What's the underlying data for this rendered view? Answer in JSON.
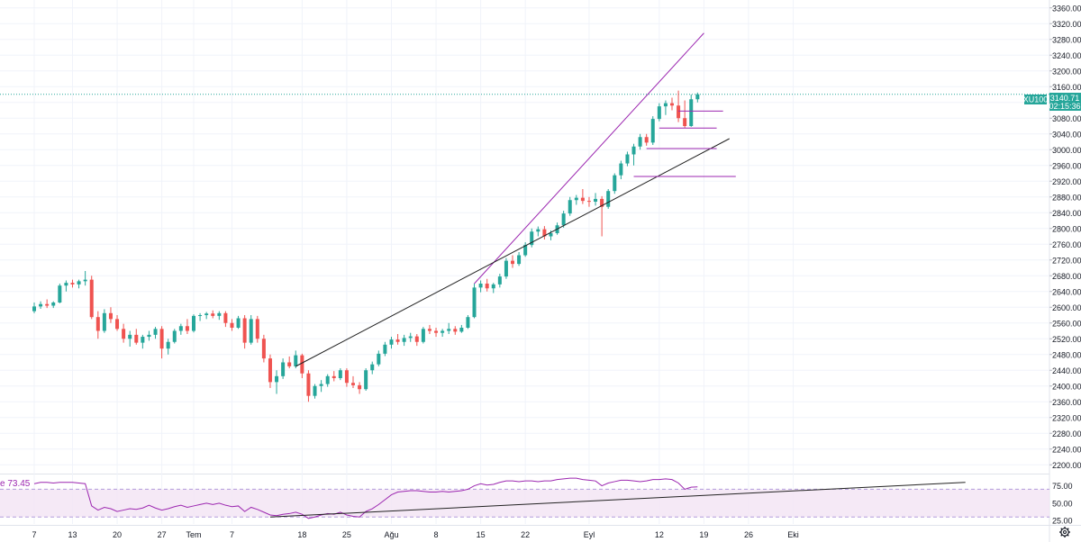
{
  "colors": {
    "up": "#26a69a",
    "down": "#ef5350",
    "trend_channel": "#9c27b0",
    "trend_support": "#222222",
    "level_line": "#9c27b0",
    "rsi_line": "#9c27b0",
    "rsi_band_fill": "#f3e5f5",
    "price_line": "#26a69a",
    "grid": "#f0f3fa",
    "axis_border": "#e0e3eb"
  },
  "icons": {
    "settings": "gear-icon"
  },
  "chart_data": {
    "type": "candlestick",
    "symbol": "XU100",
    "last_price": "3140.71",
    "countdown": "02:15:36",
    "y_ticks": [
      "3360.00",
      "3320.00",
      "3280.00",
      "3240.00",
      "3200.00",
      "3160.00",
      "3120.00",
      "3080.00",
      "3040.00",
      "3000.00",
      "2960.00",
      "2920.00",
      "2880.00",
      "2840.00",
      "2800.00",
      "2760.00",
      "2720.00",
      "2680.00",
      "2640.00",
      "2600.00",
      "2560.00",
      "2520.00",
      "2480.00",
      "2440.00",
      "2400.00",
      "2360.00",
      "2320.00",
      "2280.00",
      "2240.00",
      "2200.00"
    ],
    "y_range": [
      2180,
      3380
    ],
    "x_ticks": [
      {
        "label": "7",
        "day": 0
      },
      {
        "label": "13",
        "day": 6
      },
      {
        "label": "20",
        "day": 13
      },
      {
        "label": "27",
        "day": 20
      },
      {
        "label": "Tem",
        "day": 25
      },
      {
        "label": "7",
        "day": 31
      },
      {
        "label": "18",
        "day": 42
      },
      {
        "label": "25",
        "day": 49
      },
      {
        "label": "Ağu",
        "day": 56
      },
      {
        "label": "8",
        "day": 63
      },
      {
        "label": "15",
        "day": 70
      },
      {
        "label": "22",
        "day": 77
      },
      {
        "label": "Eyl",
        "day": 87
      },
      {
        "label": "12",
        "day": 98
      },
      {
        "label": "19",
        "day": 105
      },
      {
        "label": "26",
        "day": 112
      },
      {
        "label": "Eki",
        "day": 119
      }
    ],
    "candles": [
      {
        "o": 2590,
        "h": 2612,
        "l": 2585,
        "c": 2602
      },
      {
        "o": 2602,
        "h": 2615,
        "l": 2596,
        "c": 2608
      },
      {
        "o": 2608,
        "h": 2620,
        "l": 2598,
        "c": 2604
      },
      {
        "o": 2604,
        "h": 2615,
        "l": 2598,
        "c": 2612
      },
      {
        "o": 2612,
        "h": 2660,
        "l": 2610,
        "c": 2655
      },
      {
        "o": 2655,
        "h": 2668,
        "l": 2640,
        "c": 2662
      },
      {
        "o": 2662,
        "h": 2670,
        "l": 2650,
        "c": 2658
      },
      {
        "o": 2658,
        "h": 2670,
        "l": 2648,
        "c": 2666
      },
      {
        "o": 2666,
        "h": 2692,
        "l": 2655,
        "c": 2670
      },
      {
        "o": 2670,
        "h": 2680,
        "l": 2570,
        "c": 2575
      },
      {
        "o": 2575,
        "h": 2590,
        "l": 2520,
        "c": 2540
      },
      {
        "o": 2540,
        "h": 2595,
        "l": 2535,
        "c": 2585
      },
      {
        "o": 2585,
        "h": 2600,
        "l": 2560,
        "c": 2570
      },
      {
        "o": 2570,
        "h": 2580,
        "l": 2540,
        "c": 2545
      },
      {
        "o": 2545,
        "h": 2558,
        "l": 2510,
        "c": 2520
      },
      {
        "o": 2520,
        "h": 2540,
        "l": 2500,
        "c": 2530
      },
      {
        "o": 2530,
        "h": 2545,
        "l": 2505,
        "c": 2510
      },
      {
        "o": 2510,
        "h": 2530,
        "l": 2495,
        "c": 2525
      },
      {
        "o": 2525,
        "h": 2540,
        "l": 2515,
        "c": 2530
      },
      {
        "o": 2530,
        "h": 2550,
        "l": 2520,
        "c": 2545
      },
      {
        "o": 2545,
        "h": 2552,
        "l": 2470,
        "c": 2495
      },
      {
        "o": 2495,
        "h": 2520,
        "l": 2480,
        "c": 2512
      },
      {
        "o": 2512,
        "h": 2545,
        "l": 2508,
        "c": 2540
      },
      {
        "o": 2540,
        "h": 2558,
        "l": 2530,
        "c": 2552
      },
      {
        "o": 2552,
        "h": 2570,
        "l": 2532,
        "c": 2540
      },
      {
        "o": 2540,
        "h": 2582,
        "l": 2536,
        "c": 2578
      },
      {
        "o": 2578,
        "h": 2585,
        "l": 2565,
        "c": 2580
      },
      {
        "o": 2580,
        "h": 2588,
        "l": 2570,
        "c": 2584
      },
      {
        "o": 2584,
        "h": 2592,
        "l": 2572,
        "c": 2578
      },
      {
        "o": 2578,
        "h": 2590,
        "l": 2568,
        "c": 2585
      },
      {
        "o": 2585,
        "h": 2590,
        "l": 2550,
        "c": 2560
      },
      {
        "o": 2560,
        "h": 2570,
        "l": 2540,
        "c": 2548
      },
      {
        "o": 2548,
        "h": 2578,
        "l": 2545,
        "c": 2572
      },
      {
        "o": 2572,
        "h": 2580,
        "l": 2495,
        "c": 2510
      },
      {
        "o": 2510,
        "h": 2580,
        "l": 2505,
        "c": 2570
      },
      {
        "o": 2570,
        "h": 2578,
        "l": 2510,
        "c": 2520
      },
      {
        "o": 2520,
        "h": 2530,
        "l": 2460,
        "c": 2470
      },
      {
        "o": 2470,
        "h": 2480,
        "l": 2395,
        "c": 2410
      },
      {
        "o": 2410,
        "h": 2440,
        "l": 2380,
        "c": 2425
      },
      {
        "o": 2425,
        "h": 2470,
        "l": 2418,
        "c": 2460
      },
      {
        "o": 2460,
        "h": 2475,
        "l": 2445,
        "c": 2450
      },
      {
        "o": 2450,
        "h": 2490,
        "l": 2445,
        "c": 2478
      },
      {
        "o": 2478,
        "h": 2482,
        "l": 2420,
        "c": 2432
      },
      {
        "o": 2432,
        "h": 2440,
        "l": 2360,
        "c": 2375
      },
      {
        "o": 2375,
        "h": 2405,
        "l": 2368,
        "c": 2400
      },
      {
        "o": 2400,
        "h": 2415,
        "l": 2385,
        "c": 2405
      },
      {
        "o": 2405,
        "h": 2430,
        "l": 2398,
        "c": 2425
      },
      {
        "o": 2425,
        "h": 2438,
        "l": 2412,
        "c": 2420
      },
      {
        "o": 2420,
        "h": 2445,
        "l": 2415,
        "c": 2440
      },
      {
        "o": 2440,
        "h": 2445,
        "l": 2398,
        "c": 2408
      },
      {
        "o": 2408,
        "h": 2425,
        "l": 2395,
        "c": 2402
      },
      {
        "o": 2402,
        "h": 2410,
        "l": 2380,
        "c": 2392
      },
      {
        "o": 2392,
        "h": 2445,
        "l": 2388,
        "c": 2440
      },
      {
        "o": 2440,
        "h": 2462,
        "l": 2430,
        "c": 2455
      },
      {
        "o": 2455,
        "h": 2490,
        "l": 2450,
        "c": 2482
      },
      {
        "o": 2482,
        "h": 2512,
        "l": 2476,
        "c": 2505
      },
      {
        "o": 2505,
        "h": 2525,
        "l": 2495,
        "c": 2518
      },
      {
        "o": 2518,
        "h": 2532,
        "l": 2505,
        "c": 2512
      },
      {
        "o": 2512,
        "h": 2530,
        "l": 2502,
        "c": 2522
      },
      {
        "o": 2522,
        "h": 2535,
        "l": 2512,
        "c": 2526
      },
      {
        "o": 2526,
        "h": 2532,
        "l": 2502,
        "c": 2512
      },
      {
        "o": 2512,
        "h": 2550,
        "l": 2508,
        "c": 2545
      },
      {
        "o": 2545,
        "h": 2555,
        "l": 2532,
        "c": 2540
      },
      {
        "o": 2540,
        "h": 2548,
        "l": 2525,
        "c": 2535
      },
      {
        "o": 2535,
        "h": 2545,
        "l": 2525,
        "c": 2540
      },
      {
        "o": 2540,
        "h": 2560,
        "l": 2532,
        "c": 2545
      },
      {
        "o": 2545,
        "h": 2552,
        "l": 2530,
        "c": 2538
      },
      {
        "o": 2538,
        "h": 2555,
        "l": 2535,
        "c": 2548
      },
      {
        "o": 2548,
        "h": 2580,
        "l": 2545,
        "c": 2575
      },
      {
        "o": 2575,
        "h": 2660,
        "l": 2572,
        "c": 2650
      },
      {
        "o": 2650,
        "h": 2668,
        "l": 2638,
        "c": 2660
      },
      {
        "o": 2660,
        "h": 2672,
        "l": 2640,
        "c": 2648
      },
      {
        "o": 2648,
        "h": 2662,
        "l": 2636,
        "c": 2658
      },
      {
        "o": 2658,
        "h": 2685,
        "l": 2650,
        "c": 2678
      },
      {
        "o": 2678,
        "h": 2725,
        "l": 2672,
        "c": 2718
      },
      {
        "o": 2718,
        "h": 2732,
        "l": 2700,
        "c": 2710
      },
      {
        "o": 2710,
        "h": 2740,
        "l": 2705,
        "c": 2732
      },
      {
        "o": 2732,
        "h": 2765,
        "l": 2728,
        "c": 2758
      },
      {
        "o": 2758,
        "h": 2800,
        "l": 2752,
        "c": 2792
      },
      {
        "o": 2792,
        "h": 2805,
        "l": 2780,
        "c": 2798
      },
      {
        "o": 2798,
        "h": 2806,
        "l": 2772,
        "c": 2780
      },
      {
        "o": 2780,
        "h": 2795,
        "l": 2770,
        "c": 2788
      },
      {
        "o": 2788,
        "h": 2815,
        "l": 2784,
        "c": 2808
      },
      {
        "o": 2808,
        "h": 2845,
        "l": 2802,
        "c": 2838
      },
      {
        "o": 2838,
        "h": 2880,
        "l": 2832,
        "c": 2872
      },
      {
        "o": 2872,
        "h": 2885,
        "l": 2860,
        "c": 2878
      },
      {
        "o": 2878,
        "h": 2900,
        "l": 2862,
        "c": 2870
      },
      {
        "o": 2870,
        "h": 2880,
        "l": 2855,
        "c": 2868
      },
      {
        "o": 2868,
        "h": 2890,
        "l": 2858,
        "c": 2875
      },
      {
        "o": 2875,
        "h": 2882,
        "l": 2780,
        "c": 2855
      },
      {
        "o": 2855,
        "h": 2900,
        "l": 2850,
        "c": 2895
      },
      {
        "o": 2895,
        "h": 2940,
        "l": 2888,
        "c": 2935
      },
      {
        "o": 2935,
        "h": 2972,
        "l": 2925,
        "c": 2965
      },
      {
        "o": 2965,
        "h": 2995,
        "l": 2958,
        "c": 2988
      },
      {
        "o": 2988,
        "h": 3015,
        "l": 2960,
        "c": 3008
      },
      {
        "o": 3008,
        "h": 3040,
        "l": 3000,
        "c": 3032
      },
      {
        "o": 3032,
        "h": 3040,
        "l": 3010,
        "c": 3018
      },
      {
        "o": 3018,
        "h": 3085,
        "l": 3012,
        "c": 3078
      },
      {
        "o": 3078,
        "h": 3118,
        "l": 3072,
        "c": 3110
      },
      {
        "o": 3110,
        "h": 3125,
        "l": 3088,
        "c": 3118
      },
      {
        "o": 3118,
        "h": 3132,
        "l": 3100,
        "c": 3112
      },
      {
        "o": 3112,
        "h": 3150,
        "l": 3070,
        "c": 3080
      },
      {
        "o": 3080,
        "h": 3125,
        "l": 3055,
        "c": 3060
      },
      {
        "o": 3060,
        "h": 3140,
        "l": 3058,
        "c": 3128
      },
      {
        "o": 3128,
        "h": 3145,
        "l": 3120,
        "c": 3140.71
      }
    ],
    "trend_lines": [
      {
        "name": "upper-channel",
        "from": {
          "day": 69,
          "price": 2660
        },
        "to": {
          "day": 105,
          "price": 3296
        }
      },
      {
        "name": "lower-support",
        "from": {
          "day": 41,
          "price": 2450
        },
        "to": {
          "day": 109,
          "price": 3028
        }
      }
    ],
    "horizontal_levels": [
      {
        "price": 3098,
        "from_day": 101,
        "to_day": 108
      },
      {
        "price": 3055,
        "from_day": 98,
        "to_day": 107
      },
      {
        "price": 3003,
        "from_day": 96,
        "to_day": 107
      },
      {
        "price": 2932,
        "from_day": 94,
        "to_day": 110
      }
    ],
    "rsi": {
      "label": "e  73.45",
      "ticks": [
        "75.00",
        "50.00",
        "25.00"
      ],
      "band": [
        30,
        70
      ],
      "range": [
        20,
        90
      ],
      "values": [
        78,
        80,
        80,
        79,
        80,
        80,
        80,
        79,
        78,
        46,
        40,
        44,
        42,
        38,
        40,
        42,
        41,
        43,
        47,
        43,
        40,
        42,
        45,
        47,
        44,
        46,
        48,
        50,
        48,
        50,
        47,
        45,
        46,
        38,
        44,
        41,
        37,
        33,
        32,
        34,
        35,
        37,
        34,
        28,
        30,
        33,
        35,
        34,
        37,
        33,
        31,
        30,
        38,
        42,
        48,
        55,
        62,
        66,
        67,
        68,
        68,
        67,
        66,
        66,
        67,
        66,
        67,
        68,
        70,
        75,
        78,
        76,
        77,
        80,
        82,
        82,
        81,
        82,
        82,
        81,
        82,
        82,
        84,
        85,
        86,
        86,
        84,
        83,
        82,
        75,
        79,
        81,
        83,
        83,
        82,
        81,
        82,
        84,
        84,
        85,
        84,
        79,
        70,
        73,
        73.45
      ],
      "trend_line": {
        "from": {
          "day": 37,
          "value": 30
        },
        "to": {
          "day": 146,
          "value": 80
        }
      }
    }
  }
}
